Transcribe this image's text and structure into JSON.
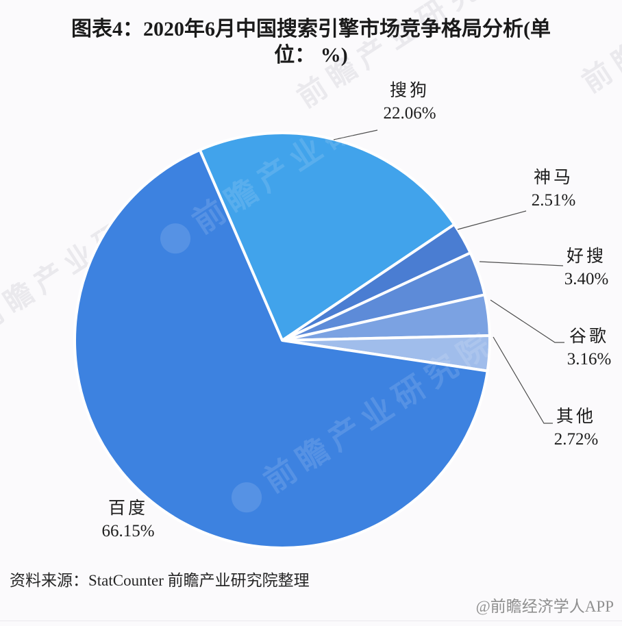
{
  "page": {
    "background_color": "#fbfafc",
    "title_line1": "图表4：2020年6月中国搜索引擎市场竞争格局分析(单",
    "title_line2": "位： %)",
    "source_note": "资料来源：StatCounter 前瞻产业研究院整理",
    "watermark_handle": "@前瞻经济学人APP",
    "watermark_text": "前瞻产业研究院"
  },
  "chart_data": {
    "type": "pie",
    "title": "图表4：2020年6月中国搜索引擎市场竞争格局分析(单位： %)",
    "unit": "%",
    "legend": "none",
    "direction": "clockwise",
    "start_angle_deg": -23.4,
    "gap_color": "#ffffff",
    "leader_line_color": "#4d4d4d",
    "slices": [
      {
        "label": "搜狗",
        "value": 22.06,
        "pct_text": "22.06%",
        "color": "#41a3eb"
      },
      {
        "label": "神马",
        "value": 2.51,
        "pct_text": "2.51%",
        "color": "#4a7dd2"
      },
      {
        "label": "好搜",
        "value": 3.4,
        "pct_text": "3.40%",
        "color": "#5d8bd8"
      },
      {
        "label": "谷歌",
        "value": 3.16,
        "pct_text": "3.16%",
        "color": "#7ba2e2"
      },
      {
        "label": "其他",
        "value": 2.72,
        "pct_text": "2.72%",
        "color": "#a0bdeb"
      },
      {
        "label": "百度",
        "value": 66.15,
        "pct_text": "66.15%",
        "color": "#3d82e0"
      }
    ]
  }
}
